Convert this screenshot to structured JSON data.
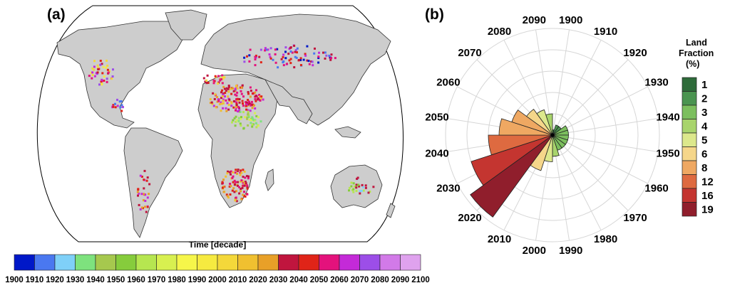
{
  "chart_data": [
    {
      "panel": "(a)",
      "type": "map",
      "colorbar_title": "Time [decade]",
      "colorbar_ticks": [
        "1900",
        "1910",
        "1920",
        "1930",
        "1940",
        "1950",
        "1960",
        "1970",
        "1980",
        "1990",
        "2000",
        "2010",
        "2020",
        "2030",
        "2040",
        "2050",
        "2060",
        "2070",
        "2080",
        "2090",
        "2100"
      ],
      "colorbar_colors": [
        "#0018c8",
        "#4a78f0",
        "#7fd0f8",
        "#7ee27e",
        "#a6c84e",
        "#86cc3c",
        "#b6e650",
        "#d8f050",
        "#f6f64a",
        "#f6ea40",
        "#f4d83a",
        "#f0c030",
        "#e8a028",
        "#c0153e",
        "#e02418",
        "#e4127c",
        "#c42ad8",
        "#9c4ee8",
        "#d27ae8",
        "#dfa2ee"
      ]
    },
    {
      "panel": "(b)",
      "type": "polar-bar",
      "direction_labels": [
        "1900",
        "1910",
        "1920",
        "1930",
        "1940",
        "1950",
        "1960",
        "1970",
        "1980",
        "1990",
        "2000",
        "2010",
        "2020",
        "2030",
        "2040",
        "2050",
        "2060",
        "2070",
        "2080",
        "2090"
      ],
      "values": [
        1,
        2,
        2,
        3,
        3,
        3,
        3,
        3,
        3,
        4,
        5,
        7,
        19,
        16,
        12,
        10,
        8,
        6,
        5,
        4
      ],
      "legend_title": [
        "Land",
        "Fraction",
        "(%)"
      ],
      "legend_values": [
        "1",
        "2",
        "3",
        "4",
        "5",
        "6",
        "8",
        "12",
        "16",
        "19"
      ],
      "legend_colors": [
        "#2e6b3a",
        "#4a9450",
        "#7cbf5e",
        "#a8d46c",
        "#dce88c",
        "#f5d68a",
        "#efa862",
        "#de6a40",
        "#c43530",
        "#901e2c"
      ]
    }
  ]
}
